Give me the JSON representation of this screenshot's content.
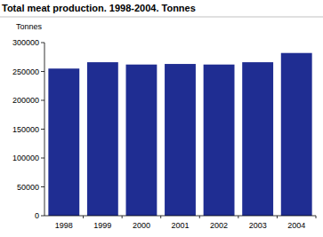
{
  "chart_data": {
    "type": "bar",
    "title": "Total meat production. 1998-2004. Tonnes",
    "ylabel": "Tonnes",
    "categories": [
      "1998",
      "1999",
      "2000",
      "2001",
      "2002",
      "2003",
      "2004"
    ],
    "values": [
      255000,
      266000,
      262000,
      263000,
      262000,
      266000,
      282000
    ],
    "color": "#1f2d92",
    "ylim": [
      0,
      300000
    ],
    "yticks": [
      0,
      50000,
      100000,
      150000,
      200000,
      250000,
      300000
    ],
    "grid": false
  }
}
